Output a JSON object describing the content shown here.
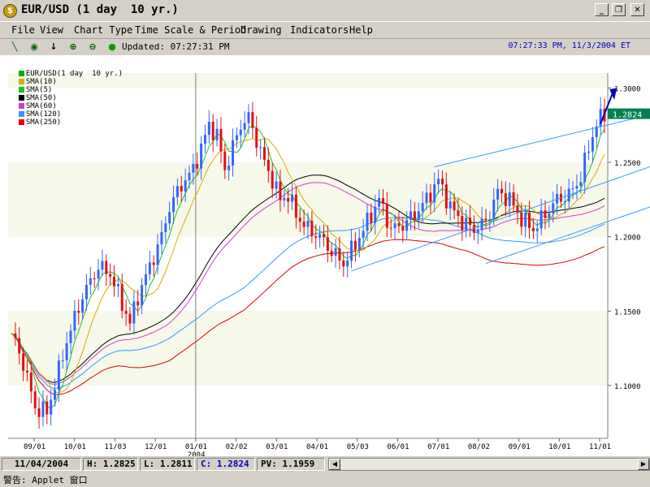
{
  "window": {
    "title": "EUR/USD (1 day  10 yr.)",
    "icon": "dollar-coin-icon",
    "buttons": [
      "minimize-icon",
      "restore-icon",
      "close-icon"
    ]
  },
  "menu": [
    "File",
    "View",
    "Chart Type",
    "Time Scale & Period",
    "Drawing",
    "Indicators",
    "Help"
  ],
  "toolbar": {
    "tools": [
      "line-draw-icon",
      "crosshair-icon",
      "arrow-down-icon",
      "zoom-in-icon",
      "zoom-out-icon",
      "dot-icon"
    ],
    "updated": "Updated: 07:27:31 PM",
    "clock": "07:27:33 PM, 11/3/2004 ET"
  },
  "legend": [
    {
      "label": "EUR/USD(1 day  10 yr.)",
      "color": "#00b000"
    },
    {
      "label": "SMA(10)",
      "color": "#d4b000"
    },
    {
      "label": "SMA(5)",
      "color": "#20c020"
    },
    {
      "label": "SMA(50)",
      "color": "#000000"
    },
    {
      "label": "SMA(60)",
      "color": "#d040d0"
    },
    {
      "label": "SMA(120)",
      "color": "#3399ff"
    },
    {
      "label": "SMA(250)",
      "color": "#e00000"
    }
  ],
  "chart_data": {
    "type": "candlestick",
    "ylim": [
      1.07,
      1.31
    ],
    "y_ticks": [
      "1.3000",
      "1.2500",
      "1.2000",
      "1.1500",
      "1.1000"
    ],
    "x_ticks": [
      "09/01",
      "10/01",
      "11/03",
      "12/01",
      "01/01",
      "02/02",
      "03/01",
      "04/01",
      "05/03",
      "06/01",
      "07/01",
      "08/02",
      "09/01",
      "10/01",
      "11/01"
    ],
    "year_label": "2004",
    "last_price_label": "1.2824",
    "price_path": [
      [
        0,
        1.135
      ],
      [
        3,
        1.115
      ],
      [
        6,
        1.085
      ],
      [
        9,
        1.082
      ],
      [
        12,
        1.11
      ],
      [
        14,
        1.13
      ],
      [
        18,
        1.16
      ],
      [
        22,
        1.18
      ],
      [
        25,
        1.175
      ],
      [
        28,
        1.155
      ],
      [
        30,
        1.142
      ],
      [
        32,
        1.16
      ],
      [
        35,
        1.18
      ],
      [
        38,
        1.2
      ],
      [
        40,
        1.22
      ],
      [
        43,
        1.235
      ],
      [
        46,
        1.245
      ],
      [
        48,
        1.26
      ],
      [
        50,
        1.275
      ],
      [
        52,
        1.268
      ],
      [
        54,
        1.245
      ],
      [
        56,
        1.26
      ],
      [
        58,
        1.275
      ],
      [
        60,
        1.28
      ],
      [
        62,
        1.265
      ],
      [
        64,
        1.25
      ],
      [
        66,
        1.238
      ],
      [
        68,
        1.225
      ],
      [
        70,
        1.228
      ],
      [
        72,
        1.215
      ],
      [
        75,
        1.205
      ],
      [
        78,
        1.2
      ],
      [
        81,
        1.19
      ],
      [
        84,
        1.182
      ],
      [
        87,
        1.195
      ],
      [
        90,
        1.21
      ],
      [
        93,
        1.225
      ],
      [
        96,
        1.205
      ],
      [
        99,
        1.208
      ],
      [
        102,
        1.215
      ],
      [
        105,
        1.225
      ],
      [
        108,
        1.238
      ],
      [
        111,
        1.22
      ],
      [
        114,
        1.21
      ],
      [
        117,
        1.205
      ],
      [
        120,
        1.21
      ],
      [
        123,
        1.23
      ],
      [
        126,
        1.225
      ],
      [
        129,
        1.212
      ],
      [
        132,
        1.205
      ],
      [
        135,
        1.215
      ],
      [
        138,
        1.225
      ],
      [
        141,
        1.228
      ],
      [
        144,
        1.24
      ],
      [
        146,
        1.26
      ],
      [
        148,
        1.276
      ],
      [
        150,
        1.2824
      ]
    ]
  },
  "status": {
    "date": "11/04/2004",
    "high": "H: 1.2825",
    "low": "L: 1.2811",
    "close": "C: 1.2824",
    "pv": "PV: 1.1959"
  },
  "applet_text": "警告: Applet 窗口"
}
